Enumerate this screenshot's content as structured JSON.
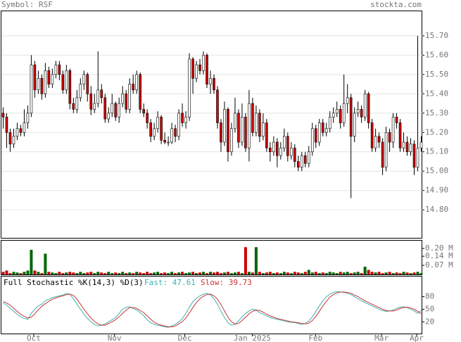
{
  "chart_data": [
    {
      "type": "candlestick",
      "title": "Symbol: RSF",
      "source": "stockta.com",
      "up_color": "#ffffff",
      "down_color": "#cc0000",
      "grid": true,
      "xlim": [
        -0.4,
        119.4
      ],
      "ylim": [
        14.655,
        15.827
      ],
      "yticks": [
        {
          "value": 14.8,
          "label": "14.80"
        },
        {
          "value": 14.9,
          "label": "14.90"
        },
        {
          "value": 15.0,
          "label": "15.00"
        },
        {
          "value": 15.1,
          "label": "15.10"
        },
        {
          "value": 15.2,
          "label": "15.20"
        },
        {
          "value": 15.3,
          "label": "15.30"
        },
        {
          "value": 15.4,
          "label": "15.40"
        },
        {
          "value": 15.5,
          "label": "15.50"
        },
        {
          "value": 15.6,
          "label": "15.60"
        },
        {
          "value": 15.7,
          "label": "15.70"
        }
      ],
      "open": [
        15.3,
        15.28,
        15.2,
        15.14,
        15.18,
        15.22,
        15.2,
        15.25,
        15.3,
        15.55,
        15.42,
        15.48,
        15.4,
        15.52,
        15.45,
        15.5,
        15.55,
        15.5,
        15.42,
        15.52,
        15.35,
        15.32,
        15.38,
        15.45,
        15.5,
        15.4,
        15.32,
        15.35,
        15.42,
        15.38,
        15.27,
        15.3,
        15.35,
        15.28,
        15.35,
        15.4,
        15.32,
        15.45,
        15.42,
        15.5,
        15.32,
        15.3,
        15.25,
        15.18,
        15.22,
        15.28,
        15.16,
        15.15,
        15.15,
        15.22,
        15.18,
        15.3,
        15.25,
        15.28,
        15.58,
        15.48,
        15.55,
        15.52,
        15.6,
        15.45,
        15.48,
        15.42,
        15.25,
        15.15,
        15.32,
        15.1,
        15.22,
        15.3,
        15.15,
        15.28,
        15.12,
        15.35,
        15.2,
        15.3,
        15.18,
        15.25,
        15.12,
        15.1,
        15.15,
        15.08,
        15.12,
        15.18,
        15.08,
        15.12,
        15.05,
        15.02,
        15.08,
        15.04,
        15.1,
        15.22,
        15.15,
        15.25,
        15.2,
        15.22,
        15.28,
        15.3,
        15.32,
        15.25,
        15.35,
        15.38,
        15.18,
        15.3,
        15.32,
        15.28,
        15.4,
        15.25,
        15.12,
        15.18,
        15.15,
        15.02,
        15.2,
        15.15,
        15.28,
        15.25,
        15.12,
        15.15,
        15.1,
        15.14,
        15.02,
        15.12
      ],
      "high": [
        15.33,
        15.3,
        15.22,
        15.22,
        15.25,
        15.24,
        15.32,
        15.34,
        15.6,
        15.57,
        15.52,
        15.5,
        15.56,
        15.54,
        15.53,
        15.57,
        15.57,
        15.52,
        15.55,
        15.53,
        15.38,
        15.42,
        15.48,
        15.52,
        15.51,
        15.44,
        15.4,
        15.62,
        15.45,
        15.4,
        15.33,
        15.4,
        15.36,
        15.38,
        15.44,
        15.42,
        15.48,
        15.5,
        15.52,
        15.51,
        15.35,
        15.32,
        15.27,
        15.25,
        15.31,
        15.29,
        15.2,
        15.18,
        15.25,
        15.24,
        15.32,
        15.35,
        15.31,
        15.61,
        15.59,
        15.57,
        15.58,
        15.62,
        15.61,
        15.52,
        15.5,
        15.44,
        15.27,
        15.36,
        15.33,
        15.25,
        15.38,
        15.32,
        15.35,
        15.3,
        15.42,
        15.38,
        15.34,
        15.32,
        15.3,
        15.27,
        15.15,
        15.18,
        15.17,
        15.15,
        15.22,
        15.2,
        15.15,
        15.14,
        15.08,
        15.1,
        15.1,
        15.13,
        15.25,
        15.24,
        15.27,
        15.27,
        15.25,
        15.31,
        15.33,
        15.36,
        15.34,
        15.5,
        15.45,
        15.4,
        15.33,
        15.36,
        15.34,
        15.42,
        15.41,
        15.27,
        15.22,
        15.2,
        15.17,
        15.23,
        15.22,
        15.3,
        15.3,
        15.27,
        15.2,
        15.18,
        15.17,
        15.16,
        15.7,
        15.18
      ],
      "low": [
        15.22,
        15.12,
        15.1,
        15.12,
        15.16,
        15.18,
        15.18,
        15.22,
        15.28,
        15.38,
        15.4,
        15.37,
        15.38,
        15.43,
        15.43,
        15.48,
        15.47,
        15.4,
        15.4,
        15.32,
        15.3,
        15.3,
        15.36,
        15.42,
        15.36,
        15.29,
        15.3,
        15.33,
        15.35,
        15.25,
        15.25,
        15.28,
        15.26,
        15.25,
        15.33,
        15.3,
        15.3,
        15.4,
        15.4,
        15.3,
        15.28,
        15.22,
        15.15,
        15.16,
        15.2,
        15.14,
        15.14,
        15.13,
        15.14,
        15.15,
        15.16,
        15.23,
        15.22,
        15.26,
        15.4,
        15.46,
        15.5,
        15.5,
        15.43,
        15.4,
        15.4,
        15.22,
        15.1,
        15.13,
        15.05,
        15.08,
        15.2,
        15.12,
        15.13,
        15.1,
        15.05,
        15.18,
        15.18,
        15.15,
        15.16,
        15.1,
        15.05,
        15.08,
        15.02,
        15.06,
        15.1,
        15.05,
        15.06,
        15.02,
        15.0,
        15.0,
        15.02,
        15.02,
        15.08,
        15.12,
        15.13,
        15.18,
        15.18,
        15.2,
        15.25,
        15.28,
        15.22,
        15.23,
        15.3,
        14.86,
        15.15,
        15.28,
        15.25,
        15.26,
        15.22,
        15.1,
        15.1,
        15.12,
        14.98,
        15.0,
        15.1,
        15.12,
        15.22,
        15.1,
        15.1,
        15.08,
        15.08,
        14.98,
        15.0,
        15.1
      ],
      "close": [
        15.28,
        15.2,
        15.14,
        15.18,
        15.22,
        15.2,
        15.25,
        15.3,
        15.55,
        15.42,
        15.48,
        15.4,
        15.52,
        15.45,
        15.5,
        15.55,
        15.5,
        15.42,
        15.52,
        15.35,
        15.32,
        15.38,
        15.45,
        15.5,
        15.4,
        15.32,
        15.35,
        15.42,
        15.38,
        15.27,
        15.3,
        15.35,
        15.28,
        15.35,
        15.4,
        15.32,
        15.45,
        15.42,
        15.5,
        15.32,
        15.3,
        15.25,
        15.18,
        15.22,
        15.28,
        15.16,
        15.15,
        15.15,
        15.22,
        15.18,
        15.3,
        15.25,
        15.28,
        15.58,
        15.48,
        15.55,
        15.52,
        15.6,
        15.45,
        15.48,
        15.42,
        15.25,
        15.15,
        15.32,
        15.1,
        15.22,
        15.3,
        15.15,
        15.28,
        15.12,
        15.35,
        15.2,
        15.3,
        15.18,
        15.25,
        15.12,
        15.1,
        15.15,
        15.08,
        15.12,
        15.18,
        15.08,
        15.12,
        15.05,
        15.02,
        15.08,
        15.04,
        15.1,
        15.22,
        15.15,
        15.25,
        15.2,
        15.22,
        15.28,
        15.3,
        15.32,
        15.25,
        15.35,
        15.38,
        15.18,
        15.3,
        15.32,
        15.28,
        15.4,
        15.25,
        15.12,
        15.18,
        15.15,
        15.02,
        15.2,
        15.15,
        15.28,
        15.25,
        15.12,
        15.15,
        15.1,
        15.14,
        15.02,
        15.12,
        15.15
      ]
    },
    {
      "type": "bar",
      "up_color": "#006600",
      "down_color": "#cc0000",
      "xlim": [
        -0.4,
        119.4
      ],
      "ylim": [
        0,
        0.26
      ],
      "yticks": [
        {
          "value": 0.07,
          "label": "0.07 M"
        },
        {
          "value": 0.14,
          "label": "0.14 M"
        },
        {
          "value": 0.2,
          "label": "0.20 M"
        }
      ],
      "values": [
        0.02,
        0.03,
        0.01,
        0.02,
        0.015,
        0.01,
        0.02,
        0.03,
        0.19,
        0.03,
        0.02,
        0.01,
        0.16,
        0.02,
        0.015,
        0.01,
        0.02,
        0.01,
        0.015,
        0.02,
        0.015,
        0.01,
        0.02,
        0.01,
        0.015,
        0.02,
        0.01,
        0.02,
        0.015,
        0.01,
        0.02,
        0.01,
        0.015,
        0.01,
        0.02,
        0.01,
        0.015,
        0.01,
        0.02,
        0.015,
        0.01,
        0.02,
        0.01,
        0.015,
        0.02,
        0.01,
        0.015,
        0.01,
        0.02,
        0.01,
        0.015,
        0.02,
        0.01,
        0.015,
        0.02,
        0.01,
        0.015,
        0.02,
        0.01,
        0.02,
        0.015,
        0.02,
        0.01,
        0.015,
        0.02,
        0.01,
        0.015,
        0.02,
        0.01,
        0.21,
        0.02,
        0.015,
        0.21,
        0.02,
        0.01,
        0.015,
        0.02,
        0.01,
        0.015,
        0.01,
        0.02,
        0.015,
        0.01,
        0.02,
        0.015,
        0.01,
        0.02,
        0.035,
        0.015,
        0.02,
        0.01,
        0.015,
        0.01,
        0.02,
        0.015,
        0.01,
        0.02,
        0.015,
        0.02,
        0.01,
        0.015,
        0.02,
        0.01,
        0.06,
        0.035,
        0.02,
        0.015,
        0.02,
        0.01,
        0.015,
        0.02,
        0.01,
        0.015,
        0.01,
        0.02,
        0.015,
        0.01,
        0.015,
        0.02,
        0.01
      ]
    },
    {
      "type": "line",
      "title": "Full Stochastic %K(14,3) %D(3)",
      "xlim": [
        -0.4,
        119.4
      ],
      "ylim": [
        -8,
        128
      ],
      "yticks": [
        20,
        50,
        80
      ],
      "xticks": [
        {
          "value": 8.8,
          "label": "Oct"
        },
        {
          "value": 31.8,
          "label": "Nov"
        },
        {
          "value": 51.8,
          "label": "Dec"
        },
        {
          "value": 71,
          "label": "Jan 2025"
        },
        {
          "value": 89,
          "label": "Feb"
        },
        {
          "value": 107.8,
          "label": "Mar"
        },
        {
          "value": 117.8,
          "label": "Apr"
        }
      ],
      "series": [
        {
          "name": "Fast: 47.61",
          "color": "#40b0b0",
          "values": [
            65,
            60,
            52,
            45,
            38,
            32,
            28,
            26,
            40,
            50,
            58,
            62,
            70,
            74,
            78,
            80,
            82,
            84,
            88,
            86,
            75,
            62,
            50,
            38,
            28,
            20,
            14,
            10,
            12,
            15,
            20,
            25,
            30,
            40,
            50,
            55,
            56,
            52,
            48,
            42,
            35,
            25,
            18,
            14,
            12,
            10,
            8,
            7,
            10,
            14,
            20,
            28,
            40,
            55,
            68,
            76,
            82,
            86,
            88,
            84,
            75,
            62,
            45,
            30,
            18,
            12,
            14,
            22,
            32,
            40,
            46,
            50,
            48,
            42,
            38,
            34,
            30,
            28,
            26,
            24,
            22,
            20,
            19,
            18,
            16,
            14,
            16,
            22,
            32,
            45,
            58,
            70,
            80,
            86,
            90,
            92,
            91,
            90,
            88,
            85,
            80,
            75,
            70,
            66,
            62,
            58,
            54,
            50,
            47,
            45,
            46,
            48,
            52,
            55,
            56,
            54,
            50,
            46,
            40,
            47.61
          ]
        },
        {
          "name": "Slow: 39.73",
          "color": "#cc3333",
          "values": [
            68,
            65,
            60,
            52,
            45,
            38,
            33,
            29,
            31,
            39,
            49,
            57,
            63,
            69,
            74,
            77,
            80,
            82,
            85,
            86,
            83,
            74,
            62,
            50,
            39,
            29,
            21,
            15,
            12,
            12,
            16,
            20,
            25,
            32,
            40,
            48,
            54,
            54,
            52,
            47,
            42,
            34,
            26,
            19,
            15,
            12,
            10,
            8,
            8,
            10,
            15,
            21,
            29,
            41,
            54,
            66,
            75,
            81,
            85,
            86,
            82,
            74,
            61,
            46,
            31,
            20,
            15,
            16,
            23,
            31,
            39,
            45,
            48,
            47,
            43,
            38,
            34,
            31,
            28,
            26,
            24,
            22,
            20,
            19,
            18,
            16,
            15,
            17,
            23,
            33,
            45,
            58,
            69,
            79,
            85,
            89,
            91,
            91,
            90,
            88,
            84,
            80,
            75,
            70,
            66,
            62,
            58,
            54,
            50,
            47,
            46,
            46,
            48,
            52,
            54,
            55,
            53,
            50,
            45,
            39.73
          ]
        }
      ]
    }
  ]
}
